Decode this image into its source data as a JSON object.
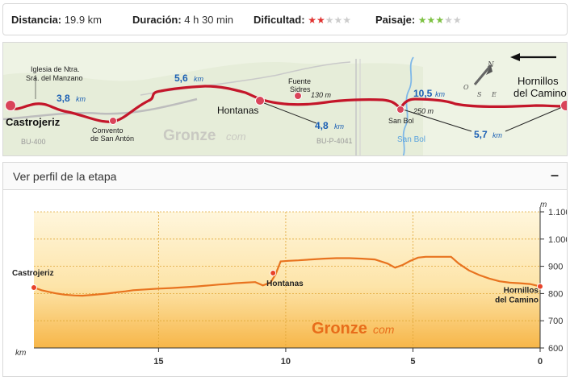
{
  "stats": {
    "distance_label": "Distancia:",
    "distance_value": "19.9 km",
    "duration_label": "Duración:",
    "duration_value": "4 h 30 min",
    "difficulty_label": "Dificultad:",
    "difficulty_rating": 2,
    "difficulty_max": 5,
    "difficulty_color": "#e0312f",
    "scenery_label": "Paisaje:",
    "scenery_rating": 3,
    "scenery_max": 5,
    "scenery_color": "#7dc142",
    "empty_star_color": "#cccccc"
  },
  "map": {
    "brand": "Gronze",
    "brand_suffix": "com",
    "route_color": "#c4162a",
    "places": {
      "start": "Castrojeriz",
      "mid": "Hontanas",
      "end_line1": "Hornillos",
      "end_line2": "del Camino",
      "san_bol": "San Bol"
    },
    "pois": {
      "church_line1": "Iglesia de Ntra.",
      "church_line2": "Sra. del Manzano",
      "convent_line1": "Convento",
      "convent_line2": "de San Antón",
      "fountain_line1": "Fuente",
      "fountain_line2": "Sidres",
      "fountain_dist": "130 m",
      "sanbol_dist": "250 m"
    },
    "distances": {
      "d1_value": "3,8",
      "d2_value": "5,6",
      "d3_value": "4,8",
      "d4_value": "10,5",
      "d5_value": "5,7",
      "unit": "km"
    },
    "roads": {
      "road1": "BU-400",
      "road2": "BU-P-4041"
    },
    "river": "San Bol",
    "compass": {
      "n": "N",
      "e": "E",
      "s": "S",
      "o": "O"
    }
  },
  "profile": {
    "header_title": "Ver perfil de la etapa",
    "toggle_icon": "–",
    "brand": "Gronze",
    "brand_suffix": "com",
    "unit_y": "m",
    "unit_x": "km"
  },
  "chart_data": {
    "type": "area",
    "xlabel": "km",
    "ylabel": "m",
    "x_reversed": true,
    "xlim": [
      0,
      19.9
    ],
    "ylim": [
      600,
      1100
    ],
    "x_ticks": [
      0,
      5,
      10,
      15
    ],
    "x_tick_labels": [
      "0",
      "5",
      "10",
      "15"
    ],
    "y_ticks": [
      600,
      700,
      800,
      900,
      1000,
      1100
    ],
    "y_tick_labels": [
      "600",
      "700",
      "800",
      "900",
      "1.000",
      "1.100"
    ],
    "line_color": "#e8731f",
    "x": [
      19.9,
      19.6,
      19.3,
      19.0,
      18.7,
      18.3,
      18.0,
      17.6,
      17.0,
      16.6,
      16.3,
      16.0,
      15.5,
      15.0,
      14.5,
      14.0,
      13.5,
      13.0,
      12.6,
      12.3,
      12.0,
      11.6,
      11.2,
      10.9,
      10.6,
      10.4,
      10.2,
      9.9,
      9.5,
      9.0,
      8.5,
      8.0,
      7.5,
      7.0,
      6.5,
      6.0,
      5.7,
      5.4,
      5.1,
      4.8,
      4.5,
      4.2,
      3.8,
      3.5,
      3.2,
      2.8,
      2.4,
      2.0,
      1.6,
      1.2,
      0.8,
      0.4,
      0.0
    ],
    "y": [
      822,
      812,
      806,
      800,
      796,
      793,
      792,
      795,
      800,
      805,
      808,
      812,
      815,
      818,
      820,
      823,
      826,
      830,
      833,
      835,
      838,
      840,
      842,
      830,
      840,
      870,
      918,
      920,
      922,
      925,
      928,
      930,
      930,
      928,
      925,
      910,
      895,
      905,
      920,
      932,
      935,
      935,
      935,
      935,
      910,
      885,
      868,
      855,
      845,
      840,
      838,
      835,
      826
    ],
    "points": [
      {
        "label": "Castrojeriz",
        "x": 19.9,
        "y": 822
      },
      {
        "label": "Hontanas",
        "x": 10.5,
        "y": 875
      },
      {
        "label": "Hornillos del Camino",
        "x": 0.0,
        "y": 826
      }
    ],
    "point_label_lines": [
      [
        "Castrojeriz"
      ],
      [
        "Hontanas"
      ],
      [
        "Hornillos",
        "del Camino"
      ]
    ]
  }
}
